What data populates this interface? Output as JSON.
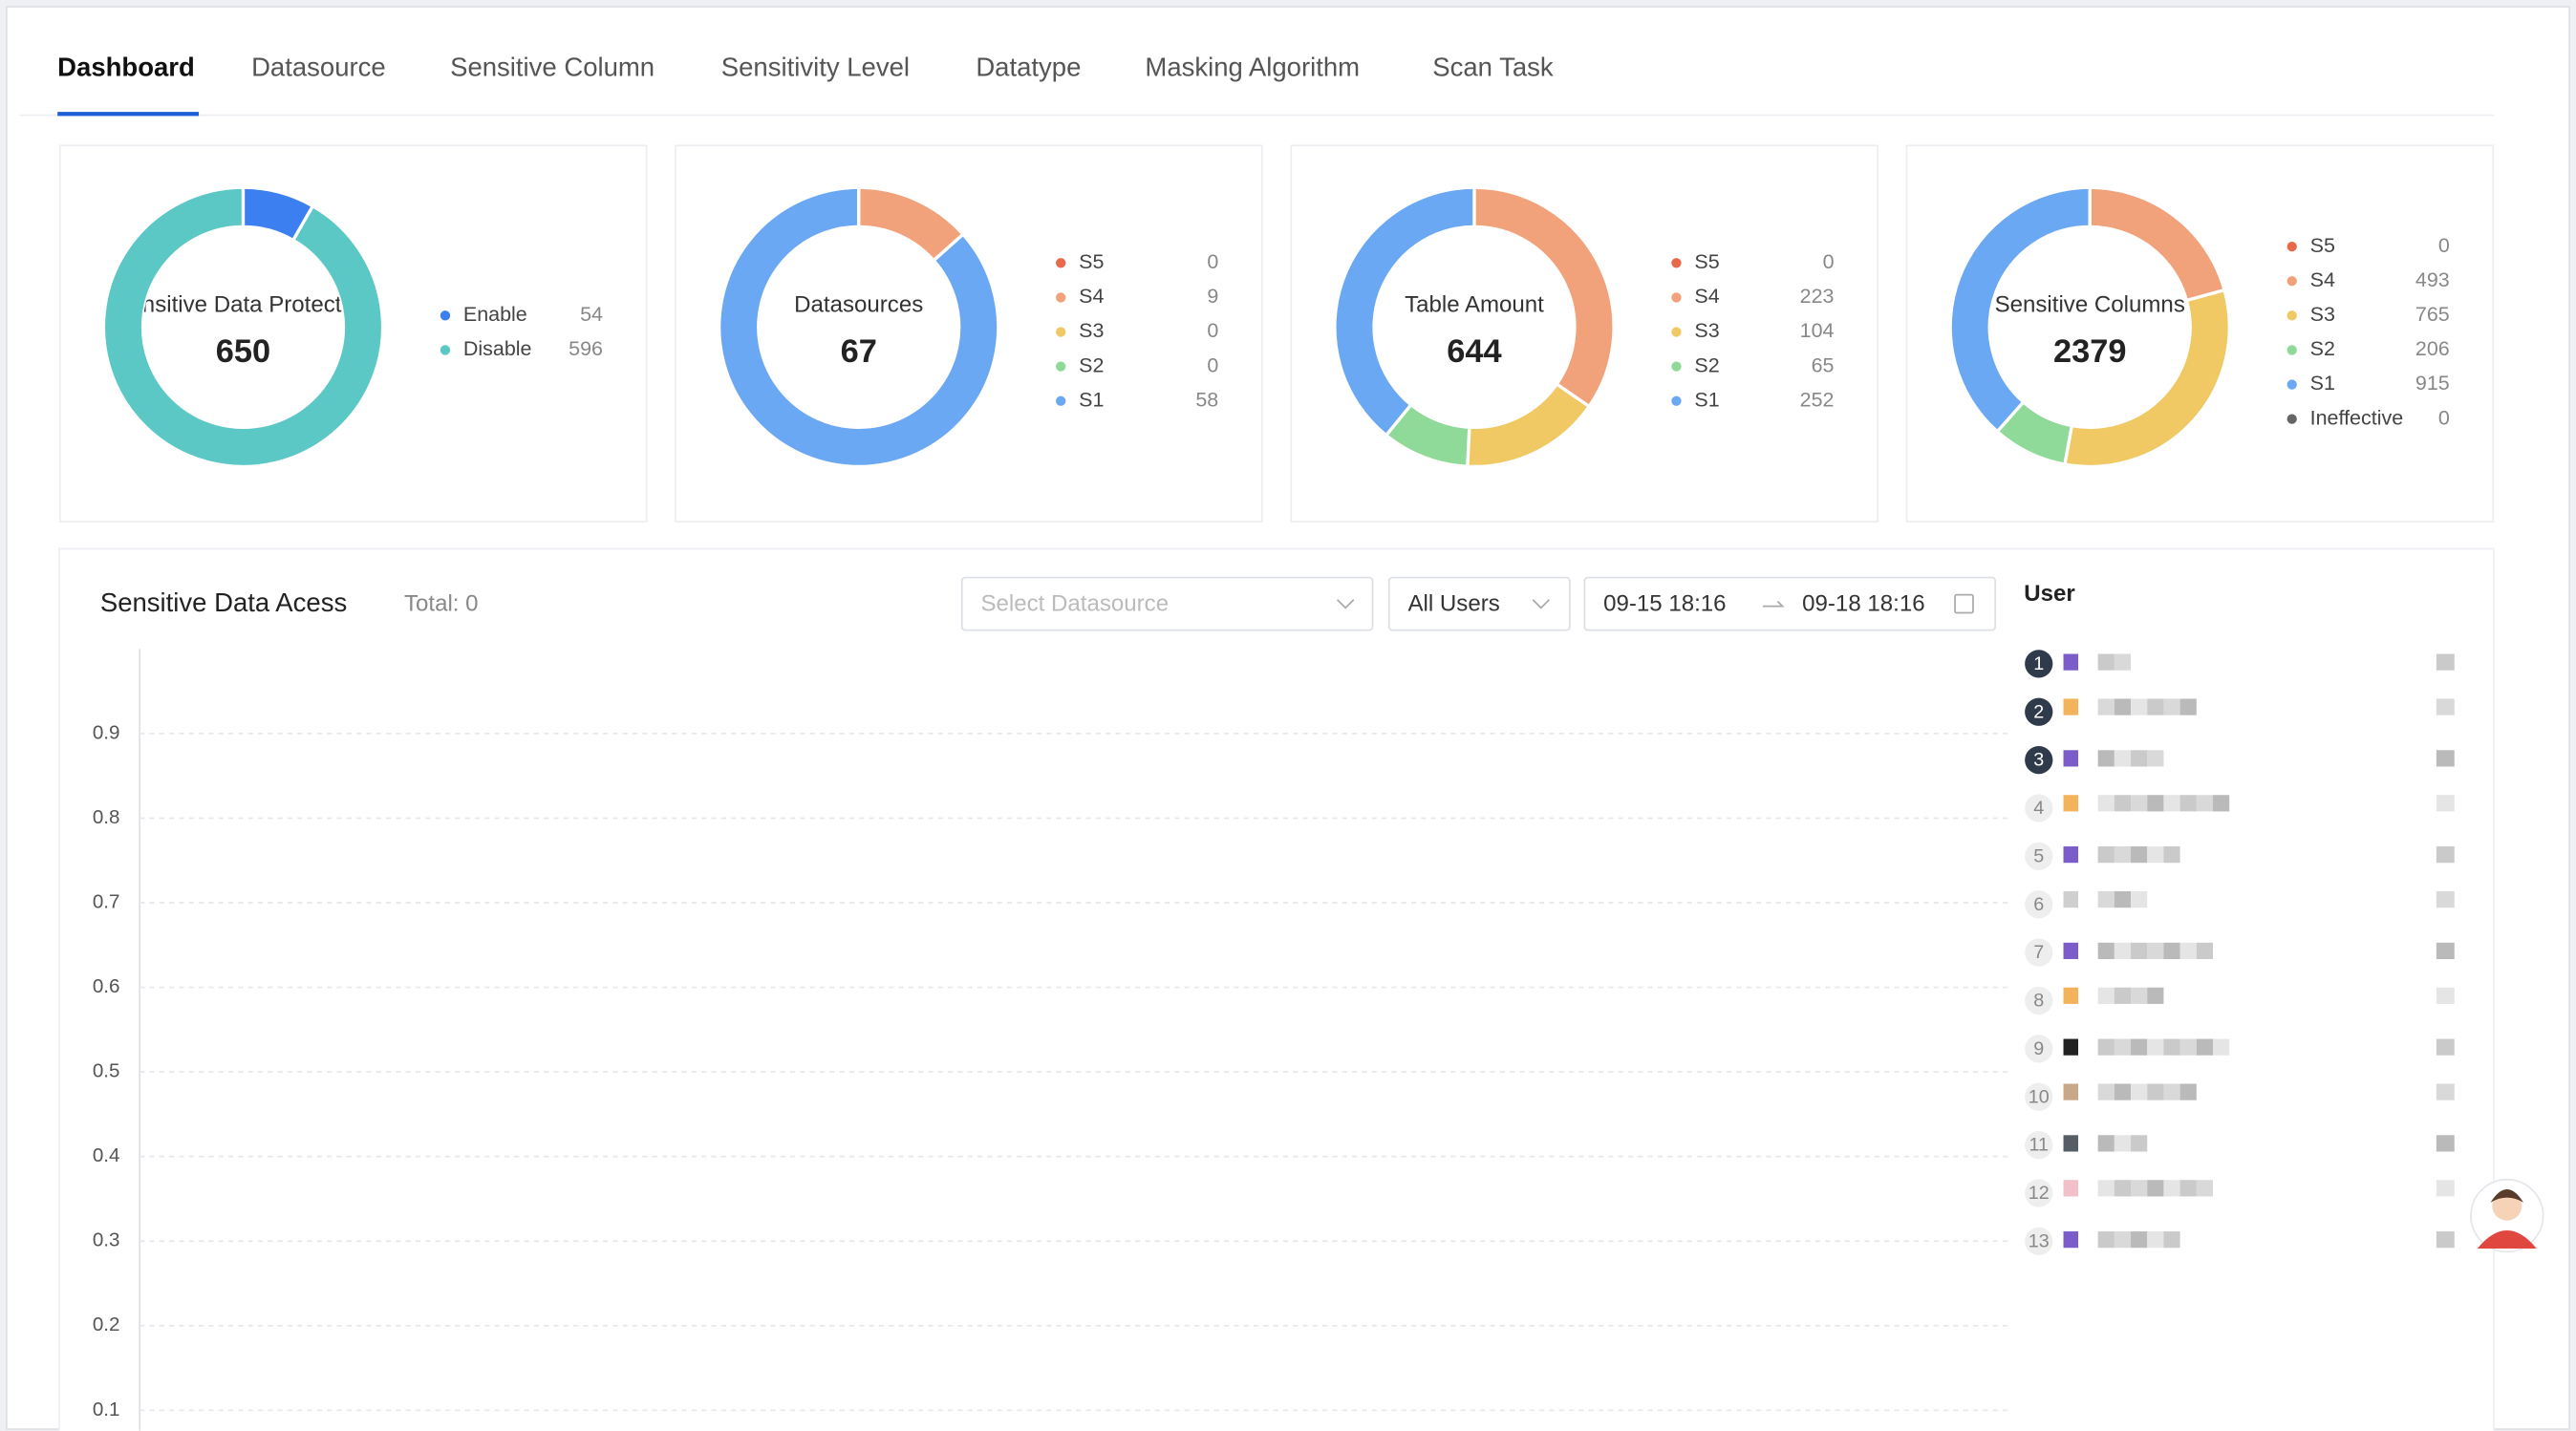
{
  "tabs": [
    "Dashboard",
    "Datasource",
    "Sensitive Column",
    "Sensitivity Level",
    "Datatype",
    "Masking Algorithm",
    "Scan Task"
  ],
  "cards": [
    {
      "type": "donut",
      "title": "Sensitive Data Protection",
      "total": 650,
      "legend": [
        {
          "name": "Enable",
          "value": 54,
          "color": "#3b7ff0"
        },
        {
          "name": "Disable",
          "value": 596,
          "color": "#5cc8c6"
        }
      ]
    },
    {
      "type": "donut",
      "title": "Datasources",
      "total": 67,
      "legend": [
        {
          "name": "S5",
          "value": 0,
          "color": "#e8684a"
        },
        {
          "name": "S4",
          "value": 9,
          "color": "#f2a27a"
        },
        {
          "name": "S3",
          "value": 0,
          "color": "#f0c864"
        },
        {
          "name": "S2",
          "value": 0,
          "color": "#8fda98"
        },
        {
          "name": "S1",
          "value": 58,
          "color": "#6ba8f4"
        }
      ]
    },
    {
      "type": "donut",
      "title": "Table Amount",
      "total": 644,
      "legend": [
        {
          "name": "S5",
          "value": 0,
          "color": "#e8684a"
        },
        {
          "name": "S4",
          "value": 223,
          "color": "#f2a27a"
        },
        {
          "name": "S3",
          "value": 104,
          "color": "#f0c864"
        },
        {
          "name": "S2",
          "value": 65,
          "color": "#8fda98"
        },
        {
          "name": "S1",
          "value": 252,
          "color": "#6ba8f4"
        }
      ]
    },
    {
      "type": "donut",
      "title": "Sensitive Columns",
      "total": 2379,
      "legend": [
        {
          "name": "S5",
          "value": 0,
          "color": "#e8684a"
        },
        {
          "name": "S4",
          "value": 493,
          "color": "#f2a27a"
        },
        {
          "name": "S3",
          "value": 765,
          "color": "#f0c864"
        },
        {
          "name": "S2",
          "value": 206,
          "color": "#8fda98"
        },
        {
          "name": "S1",
          "value": 915,
          "color": "#6ba8f4"
        },
        {
          "name": "Ineffective",
          "value": 0,
          "color": "#666666"
        }
      ]
    }
  ],
  "access": {
    "title": "Sensitive Data Acess",
    "total_label": "Total: 0",
    "datasource_placeholder": "Select Datasource",
    "users": "All Users",
    "start_date": "09-15 18:16",
    "end_date": "09-18 18:16",
    "chart_data": {
      "type": "line",
      "ylim": [
        0,
        1
      ],
      "yticks": [
        0.1,
        0.2,
        0.3,
        0.4,
        0.5,
        0.6,
        0.7,
        0.8,
        0.9
      ],
      "grid": true
    }
  },
  "user_panel": {
    "title": "User",
    "ranks": [
      1,
      2,
      3,
      4,
      5,
      6,
      7,
      8,
      9,
      10,
      11,
      12,
      13
    ]
  }
}
